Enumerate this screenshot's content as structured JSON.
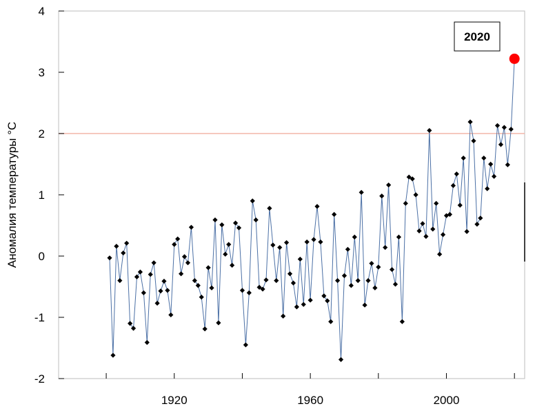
{
  "chart_data": {
    "type": "line",
    "title": "",
    "xlabel": "",
    "ylabel": "Аномалия температуры °C",
    "xlim": [
      1886,
      2023
    ],
    "ylim": [
      -2,
      4
    ],
    "xticks": [
      1920,
      1960,
      2000
    ],
    "yticks": [
      -2,
      -1,
      0,
      1,
      2,
      3,
      4
    ],
    "reference_line": {
      "y": 2,
      "color": "#f4b6a8"
    },
    "line_color": "#4a6fa5",
    "marker_color": "#000000",
    "highlight": {
      "x": 2020,
      "y": 3.22,
      "color": "#ff0000",
      "label": "2020"
    },
    "series": [
      {
        "x": [
          1901,
          1902,
          1903,
          1904,
          1905,
          1906,
          1907,
          1908,
          1909,
          1910,
          1911,
          1912,
          1913,
          1914,
          1915,
          1916,
          1917,
          1918,
          1919,
          1920,
          1921,
          1922,
          1923,
          1924,
          1925,
          1926,
          1927,
          1928,
          1929,
          1930,
          1931,
          1932,
          1933,
          1934,
          1935,
          1936,
          1937,
          1938,
          1939,
          1940,
          1941,
          1942,
          1943,
          1944,
          1945,
          1946,
          1947,
          1948,
          1949,
          1950,
          1951,
          1952,
          1953,
          1954,
          1955,
          1956,
          1957,
          1958,
          1959,
          1960,
          1961,
          1962,
          1963,
          1964,
          1965,
          1966,
          1967,
          1968,
          1969,
          1970,
          1971,
          1972,
          1973,
          1974,
          1975,
          1976,
          1977,
          1978,
          1979,
          1980,
          1981,
          1982,
          1983,
          1984,
          1985,
          1986,
          1987,
          1988,
          1989,
          1990,
          1991,
          1992,
          1993,
          1994,
          1995,
          1996,
          1997,
          1998,
          1999,
          2000,
          2001,
          2002,
          2003,
          2004,
          2005,
          2006,
          2007,
          2008,
          2009,
          2010,
          2011,
          2012,
          2013,
          2014,
          2015,
          2016,
          2017,
          2018,
          2019,
          2020
        ],
        "y": [
          -0.03,
          -1.62,
          0.16,
          -0.4,
          0.05,
          0.21,
          -1.1,
          -1.18,
          -0.34,
          -0.26,
          -0.6,
          -1.41,
          -0.3,
          -0.11,
          -0.77,
          -0.57,
          -0.41,
          -0.56,
          -0.96,
          0.19,
          0.28,
          -0.29,
          -0.01,
          -0.11,
          0.47,
          -0.4,
          -0.48,
          -0.67,
          -1.19,
          -0.19,
          -0.52,
          0.59,
          -1.09,
          0.51,
          0.03,
          0.19,
          -0.15,
          0.54,
          0.46,
          -0.56,
          -1.45,
          -0.6,
          0.9,
          0.59,
          -0.51,
          -0.54,
          -0.39,
          0.78,
          0.18,
          -0.4,
          0.14,
          -0.98,
          0.22,
          -0.29,
          -0.44,
          -0.83,
          -0.05,
          -0.79,
          0.23,
          -0.72,
          0.27,
          0.81,
          0.23,
          -0.65,
          -0.73,
          -1.07,
          0.68,
          -0.4,
          -1.69,
          -0.32,
          0.11,
          -0.48,
          0.31,
          -0.4,
          1.04,
          -0.8,
          -0.4,
          -0.12,
          -0.52,
          -0.18,
          0.98,
          0.14,
          1.16,
          -0.22,
          -0.46,
          0.31,
          -1.07,
          0.86,
          1.29,
          1.26,
          1.0,
          0.41,
          0.53,
          0.32,
          2.05,
          0.44,
          0.86,
          0.03,
          0.35,
          0.66,
          0.68,
          1.15,
          1.34,
          0.83,
          1.6,
          0.4,
          2.19,
          1.88,
          0.52,
          0.62,
          1.6,
          1.1,
          1.5,
          1.3,
          2.13,
          1.82,
          2.1,
          1.49,
          2.07,
          3.22
        ]
      }
    ]
  }
}
